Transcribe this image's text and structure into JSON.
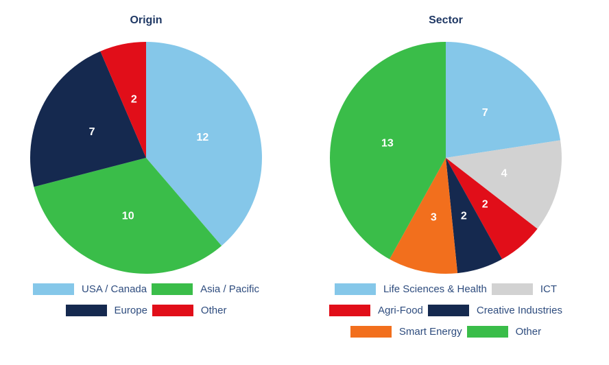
{
  "page": {
    "background": "#FFFFFF"
  },
  "text_colors": {
    "title": "#1F3864",
    "legend": "#2E4C7E",
    "slice_label": "#FFFFFF"
  },
  "chart_data": [
    {
      "type": "pie",
      "title": "Origin",
      "categories": [
        "USA / Canada",
        "Asia / Pacific",
        "Europe",
        "Other"
      ],
      "values": [
        12,
        10,
        7,
        2
      ],
      "colors": [
        "#85C7E9",
        "#3ABD49",
        "#15294F",
        "#E10E19"
      ],
      "total": 31,
      "start_angle": "12 o'clock",
      "direction": "clockwise",
      "value_labels": "inside, white, bold",
      "legend_position": "bottom",
      "legend_items_per_row": 2,
      "grid": false
    },
    {
      "type": "pie",
      "title": "Sector",
      "categories": [
        "Life Sciences & Health",
        "ICT",
        "Agri-Food",
        "Creative Industries",
        "Smart Energy",
        "Other"
      ],
      "values": [
        7,
        4,
        2,
        2,
        3,
        13
      ],
      "colors": [
        "#85C7E9",
        "#D2D2D2",
        "#E10E19",
        "#15294F",
        "#F26F1D",
        "#3ABD49"
      ],
      "total": 31,
      "start_angle": "12 o'clock",
      "direction": "clockwise",
      "value_labels": "inside, white, bold",
      "legend_position": "bottom",
      "legend_items_per_row": 2,
      "grid": false
    }
  ]
}
